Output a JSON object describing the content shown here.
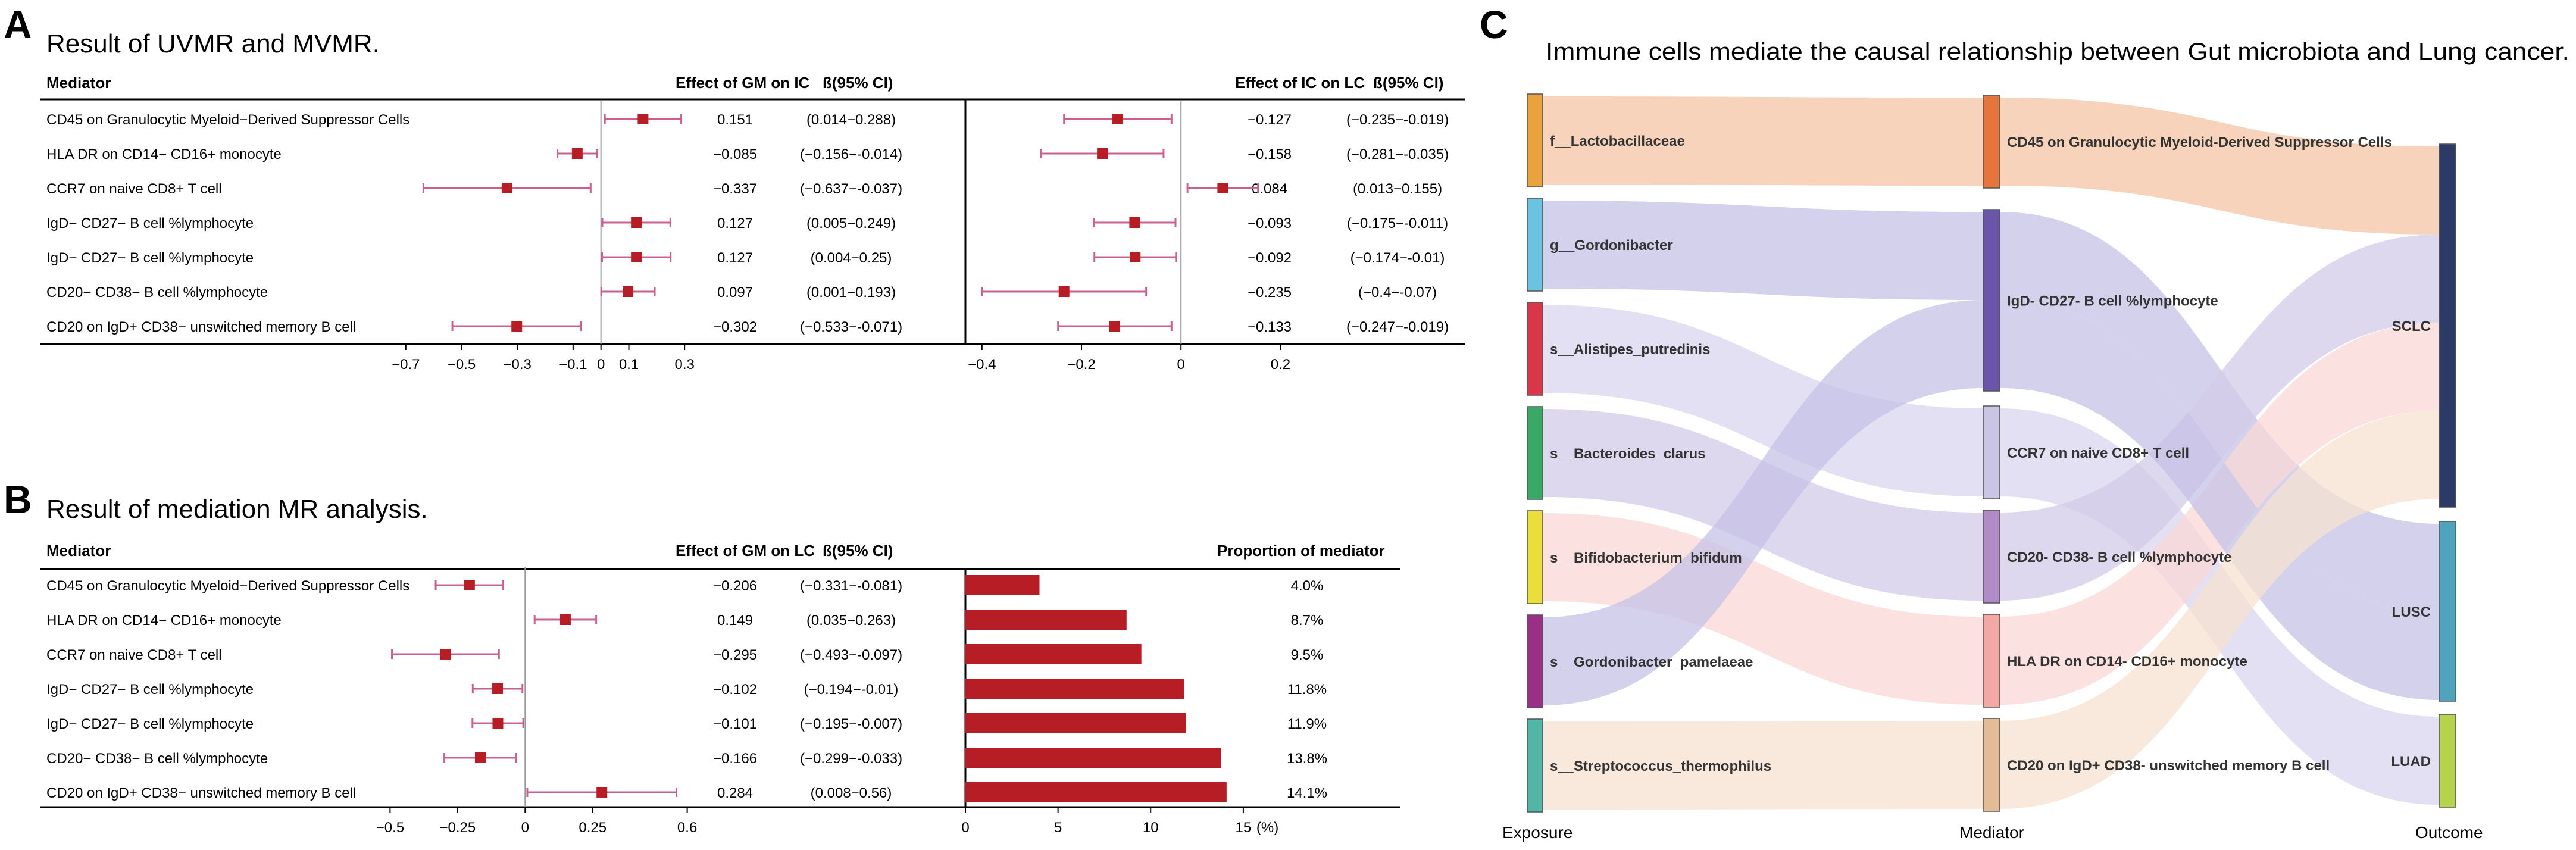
{
  "panelA": {
    "letter": "A",
    "title": "Result of UVMR and MVMR.",
    "header_mediator": "Mediator",
    "header_effect1": "Effect of GM on IC",
    "header_ci1": "ß(95% CI)",
    "header_effect2": "Effect of IC on LC",
    "header_ci2": "ß(95% CI)",
    "rows": [
      {
        "label": "CD45 on Granulocytic Myeloid−Derived Suppressor Cells",
        "b1": 0.151,
        "lo1": 0.014,
        "hi1": 0.288,
        "v1": "0.151",
        "ci1": "(0.014−0.288)",
        "b2": -0.127,
        "lo2": -0.235,
        "hi2": -0.019,
        "v2": "−0.127",
        "ci2": "(−0.235−-0.019)"
      },
      {
        "label": "HLA DR on CD14− CD16+ monocyte",
        "b1": -0.085,
        "lo1": -0.156,
        "hi1": -0.014,
        "v1": "−0.085",
        "ci1": "(−0.156−-0.014)",
        "b2": -0.158,
        "lo2": -0.281,
        "hi2": -0.035,
        "v2": "−0.158",
        "ci2": "(−0.281−-0.035)"
      },
      {
        "label": "CCR7 on naive CD8+ T cell",
        "b1": -0.337,
        "lo1": -0.637,
        "hi1": -0.037,
        "v1": "−0.337",
        "ci1": "(−0.637−-0.037)",
        "b2": 0.084,
        "lo2": 0.013,
        "hi2": 0.155,
        "v2": "0.084",
        "ci2": "(0.013−0.155)"
      },
      {
        "label": "IgD− CD27− B cell %lymphocyte",
        "b1": 0.127,
        "lo1": 0.005,
        "hi1": 0.249,
        "v1": "0.127",
        "ci1": "(0.005−0.249)",
        "b2": -0.093,
        "lo2": -0.175,
        "hi2": -0.011,
        "v2": "−0.093",
        "ci2": "(−0.175−-0.011)"
      },
      {
        "label": "IgD− CD27− B cell %lymphocyte",
        "b1": 0.127,
        "lo1": 0.004,
        "hi1": 0.25,
        "v1": "0.127",
        "ci1": "(0.004−0.25)",
        "b2": -0.092,
        "lo2": -0.174,
        "hi2": -0.01,
        "v2": "−0.092",
        "ci2": "(−0.174−-0.01)"
      },
      {
        "label": "CD20− CD38− B cell %lymphocyte",
        "b1": 0.097,
        "lo1": 0.001,
        "hi1": 0.193,
        "v1": "0.097",
        "ci1": "(0.001−0.193)",
        "b2": -0.235,
        "lo2": -0.4,
        "hi2": -0.07,
        "v2": "−0.235",
        "ci2": "(−0.4−-0.07)"
      },
      {
        "label": "CD20 on IgD+ CD38− unswitched memory B cell",
        "b1": -0.302,
        "lo1": -0.533,
        "hi1": -0.071,
        "v1": "−0.302",
        "ci1": "(−0.533−-0.071)",
        "b2": -0.133,
        "lo2": -0.247,
        "hi2": -0.019,
        "v2": "−0.133",
        "ci2": "(−0.247−-0.019)"
      }
    ],
    "axis1": {
      "xlim": [
        -0.8,
        0.4
      ],
      "ticks": [
        -0.7,
        -0.5,
        -0.3,
        -0.1,
        0,
        0.1,
        0.3
      ],
      "tick_labels": [
        "−0.7",
        "−0.5",
        "−0.3",
        "−0.1",
        "0",
        "0.1",
        "0.3"
      ]
    },
    "axis2": {
      "xlim": [
        -0.45,
        0.3
      ],
      "ticks": [
        -0.4,
        -0.2,
        0,
        0.2
      ],
      "tick_labels": [
        "−0.4",
        "−0.2",
        "0",
        "0.2"
      ]
    }
  },
  "panelB": {
    "letter": "B",
    "title": "Result of mediation MR analysis.",
    "header_mediator": "Mediator",
    "header_effect": "Effect of GM on LC",
    "header_ci": "ß(95% CI)",
    "header_prop": "Proportion of mediator",
    "rows": [
      {
        "label": "CD45 on Granulocytic Myeloid−Derived Suppressor Cells",
        "b": -0.206,
        "lo": -0.331,
        "hi": -0.081,
        "v": "−0.206",
        "ci": "(−0.331−-0.081)",
        "prop": 4.0,
        "prop_label": "4.0%"
      },
      {
        "label": "HLA DR on CD14− CD16+ monocyte",
        "b": 0.149,
        "lo": 0.035,
        "hi": 0.263,
        "v": "0.149",
        "ci": "(0.035−0.263)",
        "prop": 8.7,
        "prop_label": "8.7%"
      },
      {
        "label": "CCR7 on naive CD8+ T cell",
        "b": -0.295,
        "lo": -0.493,
        "hi": -0.097,
        "v": "−0.295",
        "ci": "(−0.493−-0.097)",
        "prop": 9.5,
        "prop_label": "9.5%"
      },
      {
        "label": "IgD− CD27− B cell %lymphocyte",
        "b": -0.102,
        "lo": -0.194,
        "hi": -0.01,
        "v": "−0.102",
        "ci": "(−0.194−-0.01)",
        "prop": 11.8,
        "prop_label": "11.8%"
      },
      {
        "label": "IgD− CD27− B cell %lymphocyte",
        "b": -0.101,
        "lo": -0.195,
        "hi": -0.007,
        "v": "−0.101",
        "ci": "(−0.195−-0.007)",
        "prop": 11.9,
        "prop_label": "11.9%"
      },
      {
        "label": "CD20− CD38− B cell %lymphocyte",
        "b": -0.166,
        "lo": -0.299,
        "hi": -0.033,
        "v": "−0.166",
        "ci": "(−0.299−-0.033)",
        "prop": 13.8,
        "prop_label": "13.8%"
      },
      {
        "label": "CD20 on IgD+ CD38− unswitched memory B cell",
        "b": 0.284,
        "lo": 0.008,
        "hi": 0.56,
        "v": "0.284",
        "ci": "(0.008−0.56)",
        "prop": 14.1,
        "prop_label": "14.1%"
      }
    ],
    "axis1": {
      "xlim": [
        -0.6,
        0.7
      ],
      "ticks": [
        -0.5,
        -0.25,
        0,
        0.25,
        0.6
      ],
      "tick_labels": [
        "−0.5",
        "−0.25",
        "0",
        "0.25",
        "0.6"
      ]
    },
    "axis2": {
      "xlim": [
        0,
        16
      ],
      "ticks": [
        0,
        5,
        10,
        15
      ],
      "tick_labels": [
        "0",
        "5",
        "10",
        "15"
      ],
      "unit": "(%)"
    }
  },
  "panelC": {
    "letter": "C",
    "title": "Immune cells mediate the causal relationship between Gut microbiota and Lung cancer.",
    "exposures": [
      {
        "name": "f__Lactobacillaceae",
        "color": "#e8a33d"
      },
      {
        "name": "g__Gordonibacter",
        "color": "#6cc3e0"
      },
      {
        "name": "s__Alistipes_putredinis",
        "color": "#d9364a"
      },
      {
        "name": "s__Bacteroides_clarus",
        "color": "#3aa866"
      },
      {
        "name": "s__Bifidobacterium_bifidum",
        "color": "#eadf3a"
      },
      {
        "name": "s__Gordonibacter_pamelaeae",
        "color": "#9a2f86"
      },
      {
        "name": "s__Streptococcus_thermophilus",
        "color": "#52b5a5"
      }
    ],
    "mediators": [
      {
        "name": "CD45 on Granulocytic Myeloid-Derived Suppressor Cells",
        "color": "#e8743d"
      },
      {
        "name": "IgD- CD27- B cell %lymphocyte",
        "color": "#6b55a8"
      },
      {
        "name": "CCR7 on naive CD8+ T cell",
        "color": "#c9c5e2"
      },
      {
        "name": "CD20- CD38- B cell %lymphocyte",
        "color": "#b08bc6"
      },
      {
        "name": "HLA DR on CD14- CD16+ monocyte",
        "color": "#f4a8a6"
      },
      {
        "name": "CD20 on IgD+ CD38- unswitched memory B cell",
        "color": "#e2bc94"
      }
    ],
    "outcomes": [
      {
        "name": "SCLC",
        "color": "#2b3a66"
      },
      {
        "name": "LUSC",
        "color": "#4fa3bd"
      },
      {
        "name": "LUAD",
        "color": "#b6d34b"
      }
    ],
    "flows": [
      {
        "exposure": 0,
        "mediator": 0,
        "outcome": 0,
        "color": "#f5c4a5"
      },
      {
        "exposure": 1,
        "mediator": 1,
        "outcome": 1,
        "color": "#c5c1e7"
      },
      {
        "exposure": 2,
        "mediator": 2,
        "outcome": 2,
        "color": "#d9d6ef"
      },
      {
        "exposure": 3,
        "mediator": 3,
        "outcome": 0,
        "color": "#d3cbe8"
      },
      {
        "exposure": 4,
        "mediator": 4,
        "outcome": 0,
        "color": "#f9d8d6"
      },
      {
        "exposure": 5,
        "mediator": 1,
        "outcome": 1,
        "color": "#c5c1e7"
      },
      {
        "exposure": 6,
        "mediator": 5,
        "outcome": 0,
        "color": "#f7e1d0"
      }
    ],
    "label_exposure": "Exposure",
    "label_mediator": "Mediator",
    "label_outcome": "Outcome"
  }
}
